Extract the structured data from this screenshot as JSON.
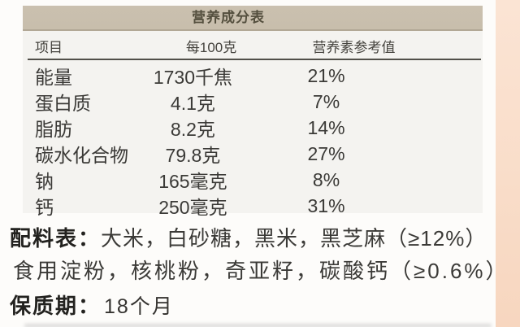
{
  "colors": {
    "page-bg": "#fdfcfa",
    "panel-bg": "#f4f3f0",
    "title-bar-bg": "#c8beac",
    "title-bar-edge": "#b2a896",
    "edge-strip": "#f9ddc9",
    "edge-strip-light": "#fbe4d4",
    "rule": "#514f49",
    "heading-text": "#45433e",
    "body-text": "#3b3a37",
    "label-text": "#23221f",
    "title-text": "#544f3e"
  },
  "nutrition_table": {
    "title": "营养成分表",
    "columns": [
      "项目",
      "每100克",
      "营养素参考值"
    ],
    "rows": [
      [
        "能量",
        "1730千焦",
        "21%"
      ],
      [
        "蛋白质",
        "4.1克",
        "7%"
      ],
      [
        "脂肪",
        "8.2克",
        "14%"
      ],
      [
        "碳水化合物",
        "79.8克",
        "27%"
      ],
      [
        "钠",
        "165毫克",
        "8%"
      ],
      [
        "钙",
        "250毫克",
        "31%"
      ]
    ]
  },
  "ingredients": {
    "label": "配料表：",
    "line1": "大米，白砂糖，黑米，黑芝麻（≥12%）",
    "line2": "食用淀粉，核桃粉，奇亚籽，碳酸钙（≥0.6%）"
  },
  "shelf_life": {
    "label": "保质期：",
    "value": "18个月"
  }
}
